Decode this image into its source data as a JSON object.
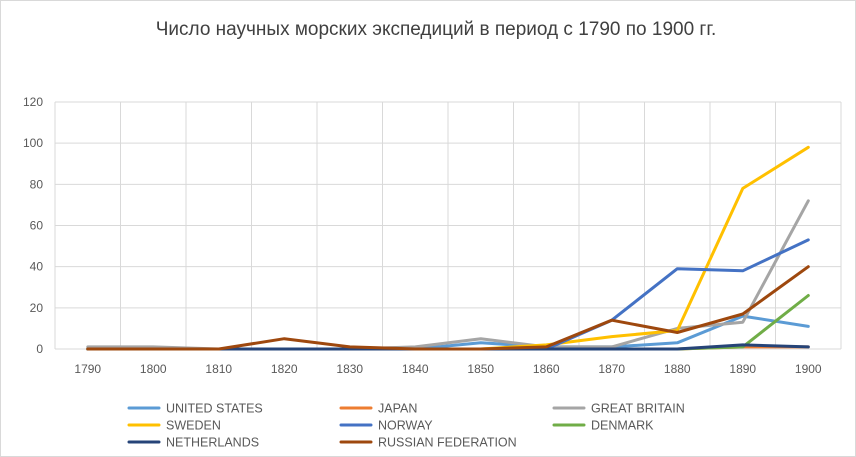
{
  "chart_data": {
    "type": "line",
    "title": "Число научных морских экспедиций в период с 1790 по 1900 гг.",
    "xlabel": "",
    "ylabel": "",
    "x": [
      "1790",
      "1800",
      "1810",
      "1820",
      "1830",
      "1840",
      "1850",
      "1860",
      "1870",
      "1880",
      "1890",
      "1900"
    ],
    "ylim": [
      0,
      120
    ],
    "yticks": [
      "0",
      "20",
      "40",
      "60",
      "80",
      "100",
      "120"
    ],
    "grid": true,
    "legend_position": "bottom",
    "series": [
      {
        "name": "UNITED STATES",
        "color": "#5b9bd5",
        "values": [
          0,
          0,
          0,
          0,
          0,
          0,
          3,
          1,
          1,
          3,
          16,
          11
        ]
      },
      {
        "name": "JAPAN",
        "color": "#ed7d31",
        "values": [
          0,
          0,
          0,
          0,
          0,
          0,
          0,
          0,
          0,
          0,
          1,
          1
        ]
      },
      {
        "name": "GREAT BRITAIN",
        "color": "#a5a5a5",
        "values": [
          1,
          1,
          0,
          0,
          0,
          1,
          5,
          1,
          1,
          10,
          13,
          72
        ]
      },
      {
        "name": "SWEDEN",
        "color": "#ffc000",
        "values": [
          0,
          0,
          0,
          0,
          0,
          0,
          0,
          2,
          6,
          9,
          78,
          98
        ]
      },
      {
        "name": "NORWAY",
        "color": "#4472c4",
        "values": [
          0,
          0,
          0,
          0,
          0,
          0,
          0,
          0,
          14,
          39,
          38,
          53
        ]
      },
      {
        "name": "DENMARK",
        "color": "#70ad47",
        "values": [
          0,
          0,
          0,
          0,
          0,
          0,
          0,
          0,
          0,
          0,
          1,
          26
        ]
      },
      {
        "name": "NETHERLANDS",
        "color": "#264478",
        "values": [
          0,
          0,
          0,
          0,
          0,
          0,
          0,
          0,
          0,
          0,
          2,
          1
        ]
      },
      {
        "name": "RUSSIAN FEDERATION",
        "color": "#9e480e",
        "values": [
          0,
          0,
          0,
          5,
          1,
          0,
          0,
          1,
          14,
          8,
          17,
          40
        ]
      }
    ]
  }
}
